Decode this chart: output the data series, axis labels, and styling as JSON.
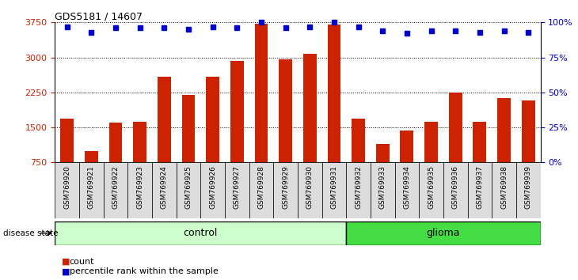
{
  "title": "GDS5181 / 14607",
  "samples": [
    "GSM769920",
    "GSM769921",
    "GSM769922",
    "GSM769923",
    "GSM769924",
    "GSM769925",
    "GSM769926",
    "GSM769927",
    "GSM769928",
    "GSM769929",
    "GSM769930",
    "GSM769931",
    "GSM769932",
    "GSM769933",
    "GSM769934",
    "GSM769935",
    "GSM769936",
    "GSM769937",
    "GSM769938",
    "GSM769939"
  ],
  "counts": [
    1680,
    1000,
    1600,
    1620,
    2580,
    2200,
    2580,
    2920,
    3720,
    2960,
    3080,
    3700,
    1680,
    1150,
    1430,
    1620,
    2250,
    1620,
    2130,
    2080
  ],
  "percentile_ranks": [
    97,
    93,
    96,
    96,
    96,
    95,
    97,
    96,
    100,
    96,
    97,
    100,
    97,
    94,
    92,
    94,
    94,
    93,
    94,
    93
  ],
  "control_count": 12,
  "glioma_count": 8,
  "ylim_left": [
    750,
    3750
  ],
  "ylim_right": [
    0,
    100
  ],
  "yticks_left": [
    750,
    1500,
    2250,
    3000,
    3750
  ],
  "yticks_right": [
    0,
    25,
    50,
    75,
    100
  ],
  "bar_color": "#CC2200",
  "dot_color": "#0000CC",
  "control_color": "#CCFFCC",
  "glioma_color": "#44DD44",
  "grid_color": "#000000",
  "bg_color": "#FFFFFF",
  "cell_bg": "#DDDDDD",
  "label_count": "count",
  "label_percentile": "percentile rank within the sample",
  "disease_state_label": "disease state",
  "control_label": "control",
  "glioma_label": "glioma"
}
